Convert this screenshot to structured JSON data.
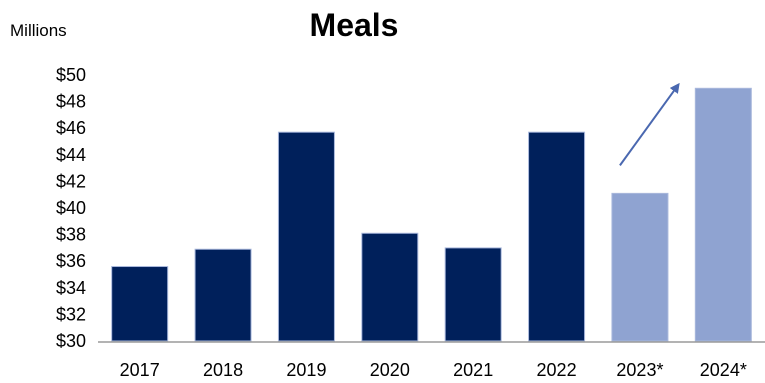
{
  "chart_data": {
    "type": "bar",
    "title": "Meals",
    "units_label": "Millions",
    "categories": [
      "2017",
      "2018",
      "2019",
      "2020",
      "2021",
      "2022",
      "2023*",
      "2024*"
    ],
    "values": [
      35.6,
      36.9,
      45.7,
      38.1,
      37.0,
      45.7,
      41.1,
      49.0
    ],
    "projected": [
      false,
      false,
      false,
      false,
      false,
      false,
      true,
      true
    ],
    "ylim": [
      30,
      50
    ],
    "yticks": [
      "$30",
      "$32",
      "$34",
      "$36",
      "$38",
      "$40",
      "$42",
      "$44",
      "$46",
      "$48",
      "$50"
    ],
    "grid": false,
    "legend": "none",
    "annotation": "upward-trend-arrow",
    "colors": {
      "actual": "#00205B",
      "projected": "#8FA3D1",
      "arrow": "#4A68B0",
      "axis": "#9A9A9A"
    }
  }
}
